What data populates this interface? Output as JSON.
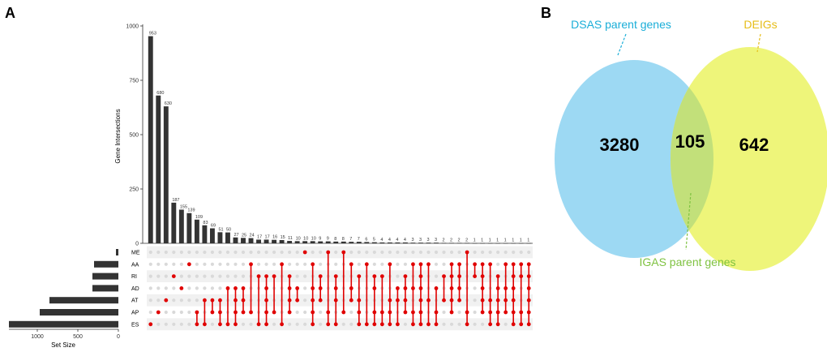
{
  "panelA": {
    "letter": "A"
  },
  "panelB": {
    "letter": "B"
  },
  "chart_data": [
    {
      "type": "upset",
      "ylabel": "Gene Intersections",
      "xlabel_sets": "Set Size",
      "ylim": [
        0,
        1000
      ],
      "yticks": [
        0,
        250,
        500,
        750,
        1000
      ],
      "set_size_ticks": [
        1000,
        500,
        0
      ],
      "sets": [
        "ME",
        "AA",
        "RI",
        "AD",
        "AT",
        "AP",
        "ES"
      ],
      "set_sizes": [
        30,
        300,
        320,
        320,
        850,
        970,
        1350
      ],
      "intersection_sizes": [
        953,
        680,
        630,
        187,
        155,
        139,
        109,
        83,
        69,
        51,
        50,
        27,
        25,
        24,
        17,
        17,
        16,
        15,
        11,
        10,
        10,
        10,
        9,
        9,
        8,
        8,
        7,
        7,
        6,
        5,
        4,
        4,
        4,
        4,
        3,
        3,
        3,
        3,
        2,
        2,
        2,
        2,
        1,
        1,
        1,
        1,
        1,
        1,
        1,
        1
      ],
      "intersection_members": [
        [
          6
        ],
        [
          5
        ],
        [
          4
        ],
        [
          2
        ],
        [
          3
        ],
        [
          1
        ],
        [
          5,
          6
        ],
        [
          4,
          6
        ],
        [
          4,
          5
        ],
        [
          4,
          5,
          6
        ],
        [
          3,
          6
        ],
        [
          3,
          4,
          5,
          6
        ],
        [
          3,
          4,
          5
        ],
        [
          1,
          5
        ],
        [
          2,
          6
        ],
        [
          2,
          3,
          4,
          5,
          6
        ],
        [
          2,
          5
        ],
        [
          1,
          6
        ],
        [
          2,
          3,
          4,
          5
        ],
        [
          3,
          4
        ],
        [
          0
        ],
        [
          1,
          3,
          4,
          5,
          6
        ],
        [
          2,
          3,
          4
        ],
        [
          0,
          5,
          6
        ],
        [
          2,
          3,
          4,
          6
        ],
        [
          0,
          5
        ],
        [
          1,
          3,
          4
        ],
        [
          2,
          4,
          5,
          6
        ],
        [
          1,
          6
        ],
        [
          2,
          3,
          5,
          6
        ],
        [
          2,
          5,
          6
        ],
        [
          1,
          4,
          5,
          6
        ],
        [
          3,
          4,
          6
        ],
        [
          2,
          3,
          4,
          5
        ],
        [
          1,
          3,
          5,
          6
        ],
        [
          1,
          2,
          3,
          4,
          5,
          6
        ],
        [
          1,
          4,
          6
        ],
        [
          3,
          5,
          6
        ],
        [
          2,
          4
        ],
        [
          1,
          2,
          3,
          4,
          5
        ],
        [
          1,
          2,
          3,
          4
        ],
        [
          0,
          5,
          6
        ],
        [
          1,
          2
        ],
        [
          1,
          2,
          3,
          4,
          5
        ],
        [
          1,
          4,
          5,
          6
        ],
        [
          2,
          3,
          4,
          5,
          6
        ],
        [
          1,
          3,
          4,
          5
        ],
        [
          1,
          2,
          3,
          4,
          5,
          6
        ],
        [
          1,
          2,
          5,
          6
        ],
        [
          1,
          2,
          3,
          4,
          5,
          6
        ]
      ]
    },
    {
      "type": "venn",
      "sets": [
        {
          "name": "DSAS parent genes",
          "only": "3280",
          "color": "#1aaed8",
          "fill": "#9dd9f3"
        },
        {
          "name": "DEIGs",
          "only": "642",
          "color": "#e6bd18",
          "fill": "#eef57a"
        }
      ],
      "overlap": {
        "name": "IGAS parent genes",
        "count": "105",
        "color": "#7fc241",
        "fill": "#c2e07a"
      }
    }
  ]
}
